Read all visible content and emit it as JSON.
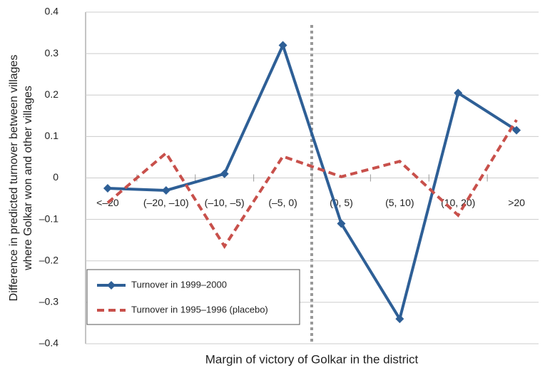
{
  "chart_data": {
    "type": "line",
    "y_label": [
      "Difference in predicted turnover between villages",
      "where Golkar won and other villages"
    ],
    "x_label": "Margin of victory of Golkar in the district",
    "categories": [
      "<–20",
      "(–20, –10)",
      "(–10, –5)",
      "(–5, 0)",
      "(0, 5)",
      "(5, 10)",
      "(10, 20)",
      ">20"
    ],
    "series": [
      {
        "name": "Turnover in 1999–2000",
        "color": "#2e5f96",
        "dash": "solid",
        "marker": "diamond",
        "values": [
          -0.025,
          -0.03,
          0.01,
          0.32,
          -0.11,
          -0.34,
          0.205,
          0.115
        ]
      },
      {
        "name": "Turnover in 1995–1996 (placebo)",
        "color": "#c8504b",
        "dash": "dashed",
        "marker": "none",
        "values": [
          -0.06,
          0.06,
          -0.165,
          0.052,
          0.003,
          0.04,
          -0.09,
          0.14
        ]
      }
    ],
    "ylim": [
      -0.4,
      0.4
    ],
    "yticks": [
      {
        "value": -0.4,
        "label": "–0.4"
      },
      {
        "value": -0.3,
        "label": "–0.3"
      },
      {
        "value": -0.2,
        "label": "–0.2"
      },
      {
        "value": -0.1,
        "label": "–0.1"
      },
      0,
      0.1,
      0.2,
      0.3,
      0.4
    ],
    "grid": true,
    "legend": "lower left"
  }
}
